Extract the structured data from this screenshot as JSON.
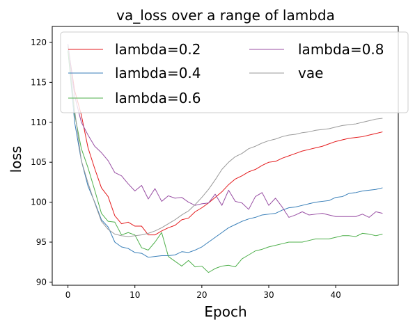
{
  "chart_data": {
    "type": "line",
    "title": "va_loss over a range of lambda",
    "xlabel": "Epoch",
    "ylabel": "loss",
    "xlim": [
      -2.35,
      49.35
    ],
    "ylim": [
      89.6,
      122.0
    ],
    "xticks": [
      0,
      10,
      20,
      30,
      40
    ],
    "yticks": [
      90,
      95,
      100,
      105,
      110,
      115,
      120
    ],
    "grid": false,
    "legend_position": "top",
    "x": [
      0,
      1,
      2,
      3,
      4,
      5,
      6,
      7,
      8,
      9,
      10,
      11,
      12,
      13,
      14,
      15,
      16,
      17,
      18,
      19,
      20,
      21,
      22,
      23,
      24,
      25,
      26,
      27,
      28,
      29,
      30,
      31,
      32,
      33,
      34,
      35,
      36,
      37,
      38,
      39,
      40,
      41,
      42,
      43,
      44,
      45,
      46,
      47
    ],
    "series": [
      {
        "name": "lambda=0.2",
        "color": "#e41a1c",
        "values": [
          119.5,
          114.0,
          110.9,
          106.8,
          104.2,
          101.8,
          100.7,
          98.3,
          97.3,
          97.5,
          97.0,
          97.0,
          95.9,
          95.9,
          96.4,
          96.8,
          97.1,
          97.8,
          98.0,
          98.8,
          99.3,
          99.9,
          100.6,
          101.3,
          102.2,
          102.9,
          103.3,
          103.8,
          104.1,
          104.6,
          105.0,
          105.1,
          105.5,
          105.8,
          106.1,
          106.4,
          106.6,
          106.8,
          107.0,
          107.3,
          107.6,
          107.8,
          108.0,
          108.1,
          108.2,
          108.4,
          108.6,
          108.8
        ]
      },
      {
        "name": "lambda=0.4",
        "color": "#377eb8",
        "values": [
          119.0,
          110.0,
          105.2,
          102.0,
          100.0,
          97.8,
          96.9,
          95.0,
          94.4,
          94.2,
          93.7,
          93.6,
          93.1,
          93.2,
          93.3,
          93.3,
          93.4,
          93.8,
          93.7,
          94.0,
          94.4,
          95.0,
          95.6,
          96.2,
          96.8,
          97.2,
          97.6,
          97.9,
          98.1,
          98.4,
          98.5,
          98.6,
          99.0,
          99.3,
          99.4,
          99.6,
          99.8,
          100.0,
          100.1,
          100.2,
          100.6,
          100.7,
          101.1,
          101.2,
          101.4,
          101.5,
          101.6,
          101.8
        ]
      },
      {
        "name": "lambda=0.6",
        "color": "#4daf4a",
        "values": [
          118.9,
          111.0,
          106.7,
          104.3,
          101.5,
          98.6,
          97.6,
          97.5,
          95.9,
          96.2,
          95.9,
          94.3,
          94.0,
          95.0,
          96.2,
          93.2,
          92.6,
          92.0,
          92.7,
          91.9,
          92.0,
          91.2,
          91.7,
          92.0,
          92.1,
          91.9,
          92.9,
          93.4,
          93.9,
          94.1,
          94.4,
          94.6,
          94.8,
          95.0,
          95.0,
          95.0,
          95.2,
          95.4,
          95.4,
          95.4,
          95.6,
          95.8,
          95.8,
          95.7,
          96.1,
          96.0,
          95.8,
          96.0
        ]
      },
      {
        "name": "lambda=0.8",
        "color": "#984ea3",
        "values": [
          119.8,
          113.3,
          110.0,
          108.4,
          107.0,
          106.2,
          105.2,
          103.7,
          103.3,
          102.3,
          101.4,
          102.1,
          100.4,
          101.7,
          100.1,
          100.8,
          100.5,
          100.6,
          100.0,
          99.6,
          99.8,
          99.9,
          101.0,
          99.6,
          101.5,
          100.1,
          99.9,
          99.1,
          100.7,
          101.2,
          99.6,
          100.5,
          99.4,
          98.1,
          98.4,
          98.8,
          98.4,
          98.5,
          98.6,
          98.4,
          98.2,
          98.2,
          98.2,
          98.2,
          98.5,
          98.1,
          98.8,
          98.6
        ]
      },
      {
        "name": "vae",
        "color": "#999999",
        "values": [
          119.7,
          111.5,
          105.2,
          102.4,
          99.9,
          97.6,
          96.6,
          96.0,
          95.8,
          95.7,
          95.8,
          95.9,
          96.1,
          96.4,
          96.8,
          97.3,
          97.8,
          98.4,
          98.9,
          99.7,
          100.6,
          101.6,
          102.8,
          104.1,
          105.0,
          105.7,
          106.1,
          106.7,
          107.0,
          107.4,
          107.7,
          107.9,
          108.2,
          108.4,
          108.5,
          108.7,
          108.8,
          109.0,
          109.1,
          109.2,
          109.4,
          109.6,
          109.7,
          109.8,
          110.0,
          110.2,
          110.4,
          110.5
        ]
      }
    ]
  }
}
